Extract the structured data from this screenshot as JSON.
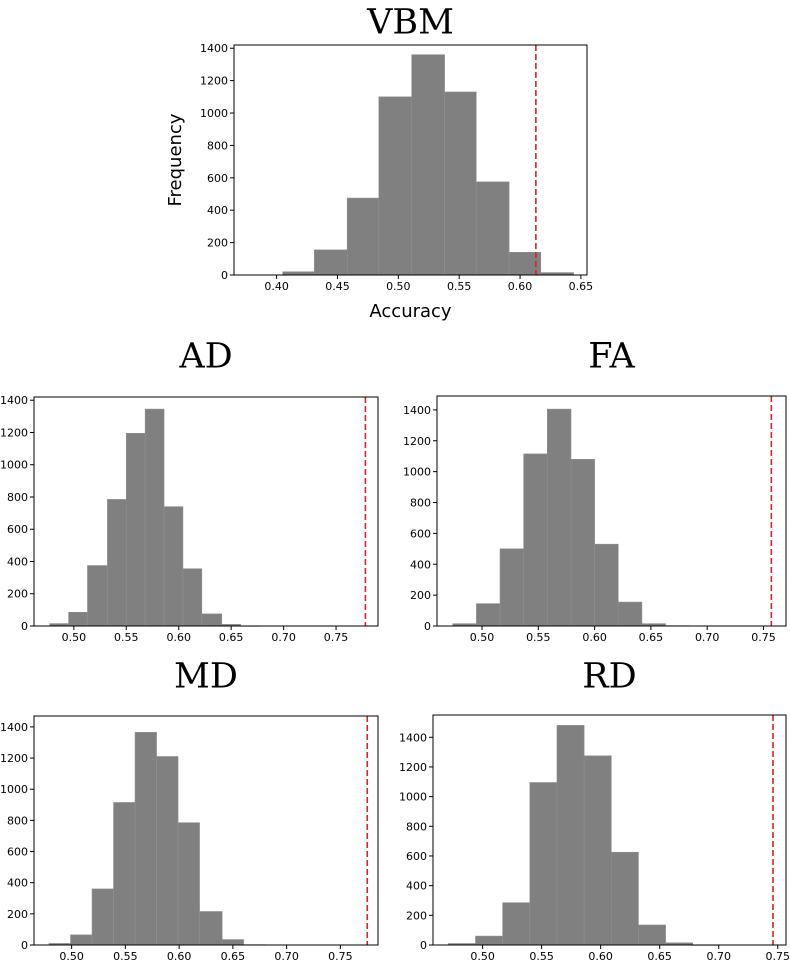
{
  "chart_data": [
    {
      "id": "vbm",
      "type": "bar",
      "title": "VBM",
      "xlabel": "Accuracy",
      "ylabel": "Frequency",
      "xlim": [
        0.365,
        0.655
      ],
      "ylim": [
        0,
        1420
      ],
      "xticks": [
        "0.40",
        "0.45",
        "0.50",
        "0.55",
        "0.60",
        "0.65"
      ],
      "yticks": [
        "0",
        "200",
        "400",
        "600",
        "800",
        "1000",
        "1200",
        "1400"
      ],
      "bin_edges": [
        0.405,
        0.431,
        0.458,
        0.484,
        0.511,
        0.538,
        0.564,
        0.591,
        0.617,
        0.644
      ],
      "values": [
        20,
        155,
        475,
        1100,
        1360,
        1130,
        575,
        140,
        15
      ],
      "reference_line": 0.613
    },
    {
      "id": "ad",
      "type": "bar",
      "title": "AD",
      "xlabel": "",
      "ylabel": "",
      "xlim": [
        0.462,
        0.79
      ],
      "ylim": [
        0,
        1420
      ],
      "xticks": [
        "0.50",
        "0.55",
        "0.60",
        "0.65",
        "0.70",
        "0.75"
      ],
      "yticks": [
        "0",
        "200",
        "400",
        "600",
        "800",
        "1000",
        "1200",
        "1400"
      ],
      "bin_edges": [
        0.477,
        0.495,
        0.513,
        0.532,
        0.55,
        0.568,
        0.586,
        0.604,
        0.622,
        0.641,
        0.659,
        0.677,
        0.695,
        0.713,
        0.731,
        0.75,
        0.768,
        0.778
      ],
      "values": [
        15,
        85,
        375,
        785,
        1195,
        1345,
        740,
        355,
        75,
        10,
        1,
        0,
        0,
        0,
        0,
        0,
        0
      ],
      "reference_line": 0.778
    },
    {
      "id": "fa",
      "type": "bar",
      "title": "FA",
      "xlabel": "",
      "ylabel": "",
      "xlim": [
        0.46,
        0.77
      ],
      "ylim": [
        0,
        1490
      ],
      "xticks": [
        "0.50",
        "0.55",
        "0.60",
        "0.65",
        "0.70",
        "0.75"
      ],
      "yticks": [
        "0",
        "200",
        "400",
        "600",
        "800",
        "1000",
        "1200",
        "1400"
      ],
      "bin_edges": [
        0.474,
        0.495,
        0.516,
        0.537,
        0.558,
        0.579,
        0.6,
        0.621,
        0.642,
        0.663,
        0.685,
        0.706,
        0.727,
        0.748,
        0.757
      ],
      "values": [
        15,
        145,
        500,
        1115,
        1405,
        1080,
        530,
        155,
        15,
        2,
        0,
        0,
        0,
        0
      ],
      "reference_line": 0.757
    },
    {
      "id": "md",
      "type": "bar",
      "title": "MD",
      "xlabel": "",
      "ylabel": "",
      "xlim": [
        0.465,
        0.785
      ],
      "ylim": [
        0,
        1470
      ],
      "xticks": [
        "0.50",
        "0.55",
        "0.60",
        "0.65",
        "0.70",
        "0.75"
      ],
      "yticks": [
        "0",
        "200",
        "400",
        "600",
        "800",
        "1000",
        "1200",
        "1400"
      ],
      "bin_edges": [
        0.479,
        0.499,
        0.519,
        0.539,
        0.559,
        0.579,
        0.599,
        0.619,
        0.64,
        0.66,
        0.68,
        0.7,
        0.72,
        0.74,
        0.76,
        0.775
      ],
      "values": [
        10,
        65,
        360,
        915,
        1365,
        1210,
        785,
        215,
        35,
        2,
        0,
        0,
        0,
        0,
        0
      ],
      "reference_line": 0.775
    },
    {
      "id": "rd",
      "type": "bar",
      "title": "RD",
      "xlabel": "",
      "ylabel": "",
      "xlim": [
        0.458,
        0.757
      ],
      "ylim": [
        0,
        1550
      ],
      "xticks": [
        "0.50",
        "0.55",
        "0.60",
        "0.65",
        "0.70",
        "0.75"
      ],
      "yticks": [
        "0",
        "200",
        "400",
        "600",
        "800",
        "1000",
        "1200",
        "1400"
      ],
      "bin_edges": [
        0.471,
        0.494,
        0.517,
        0.54,
        0.563,
        0.586,
        0.609,
        0.632,
        0.655,
        0.678,
        0.701,
        0.724,
        0.746
      ],
      "values": [
        10,
        60,
        285,
        1095,
        1480,
        1275,
        625,
        135,
        15,
        1,
        0,
        0
      ],
      "reference_line": 0.746
    }
  ]
}
